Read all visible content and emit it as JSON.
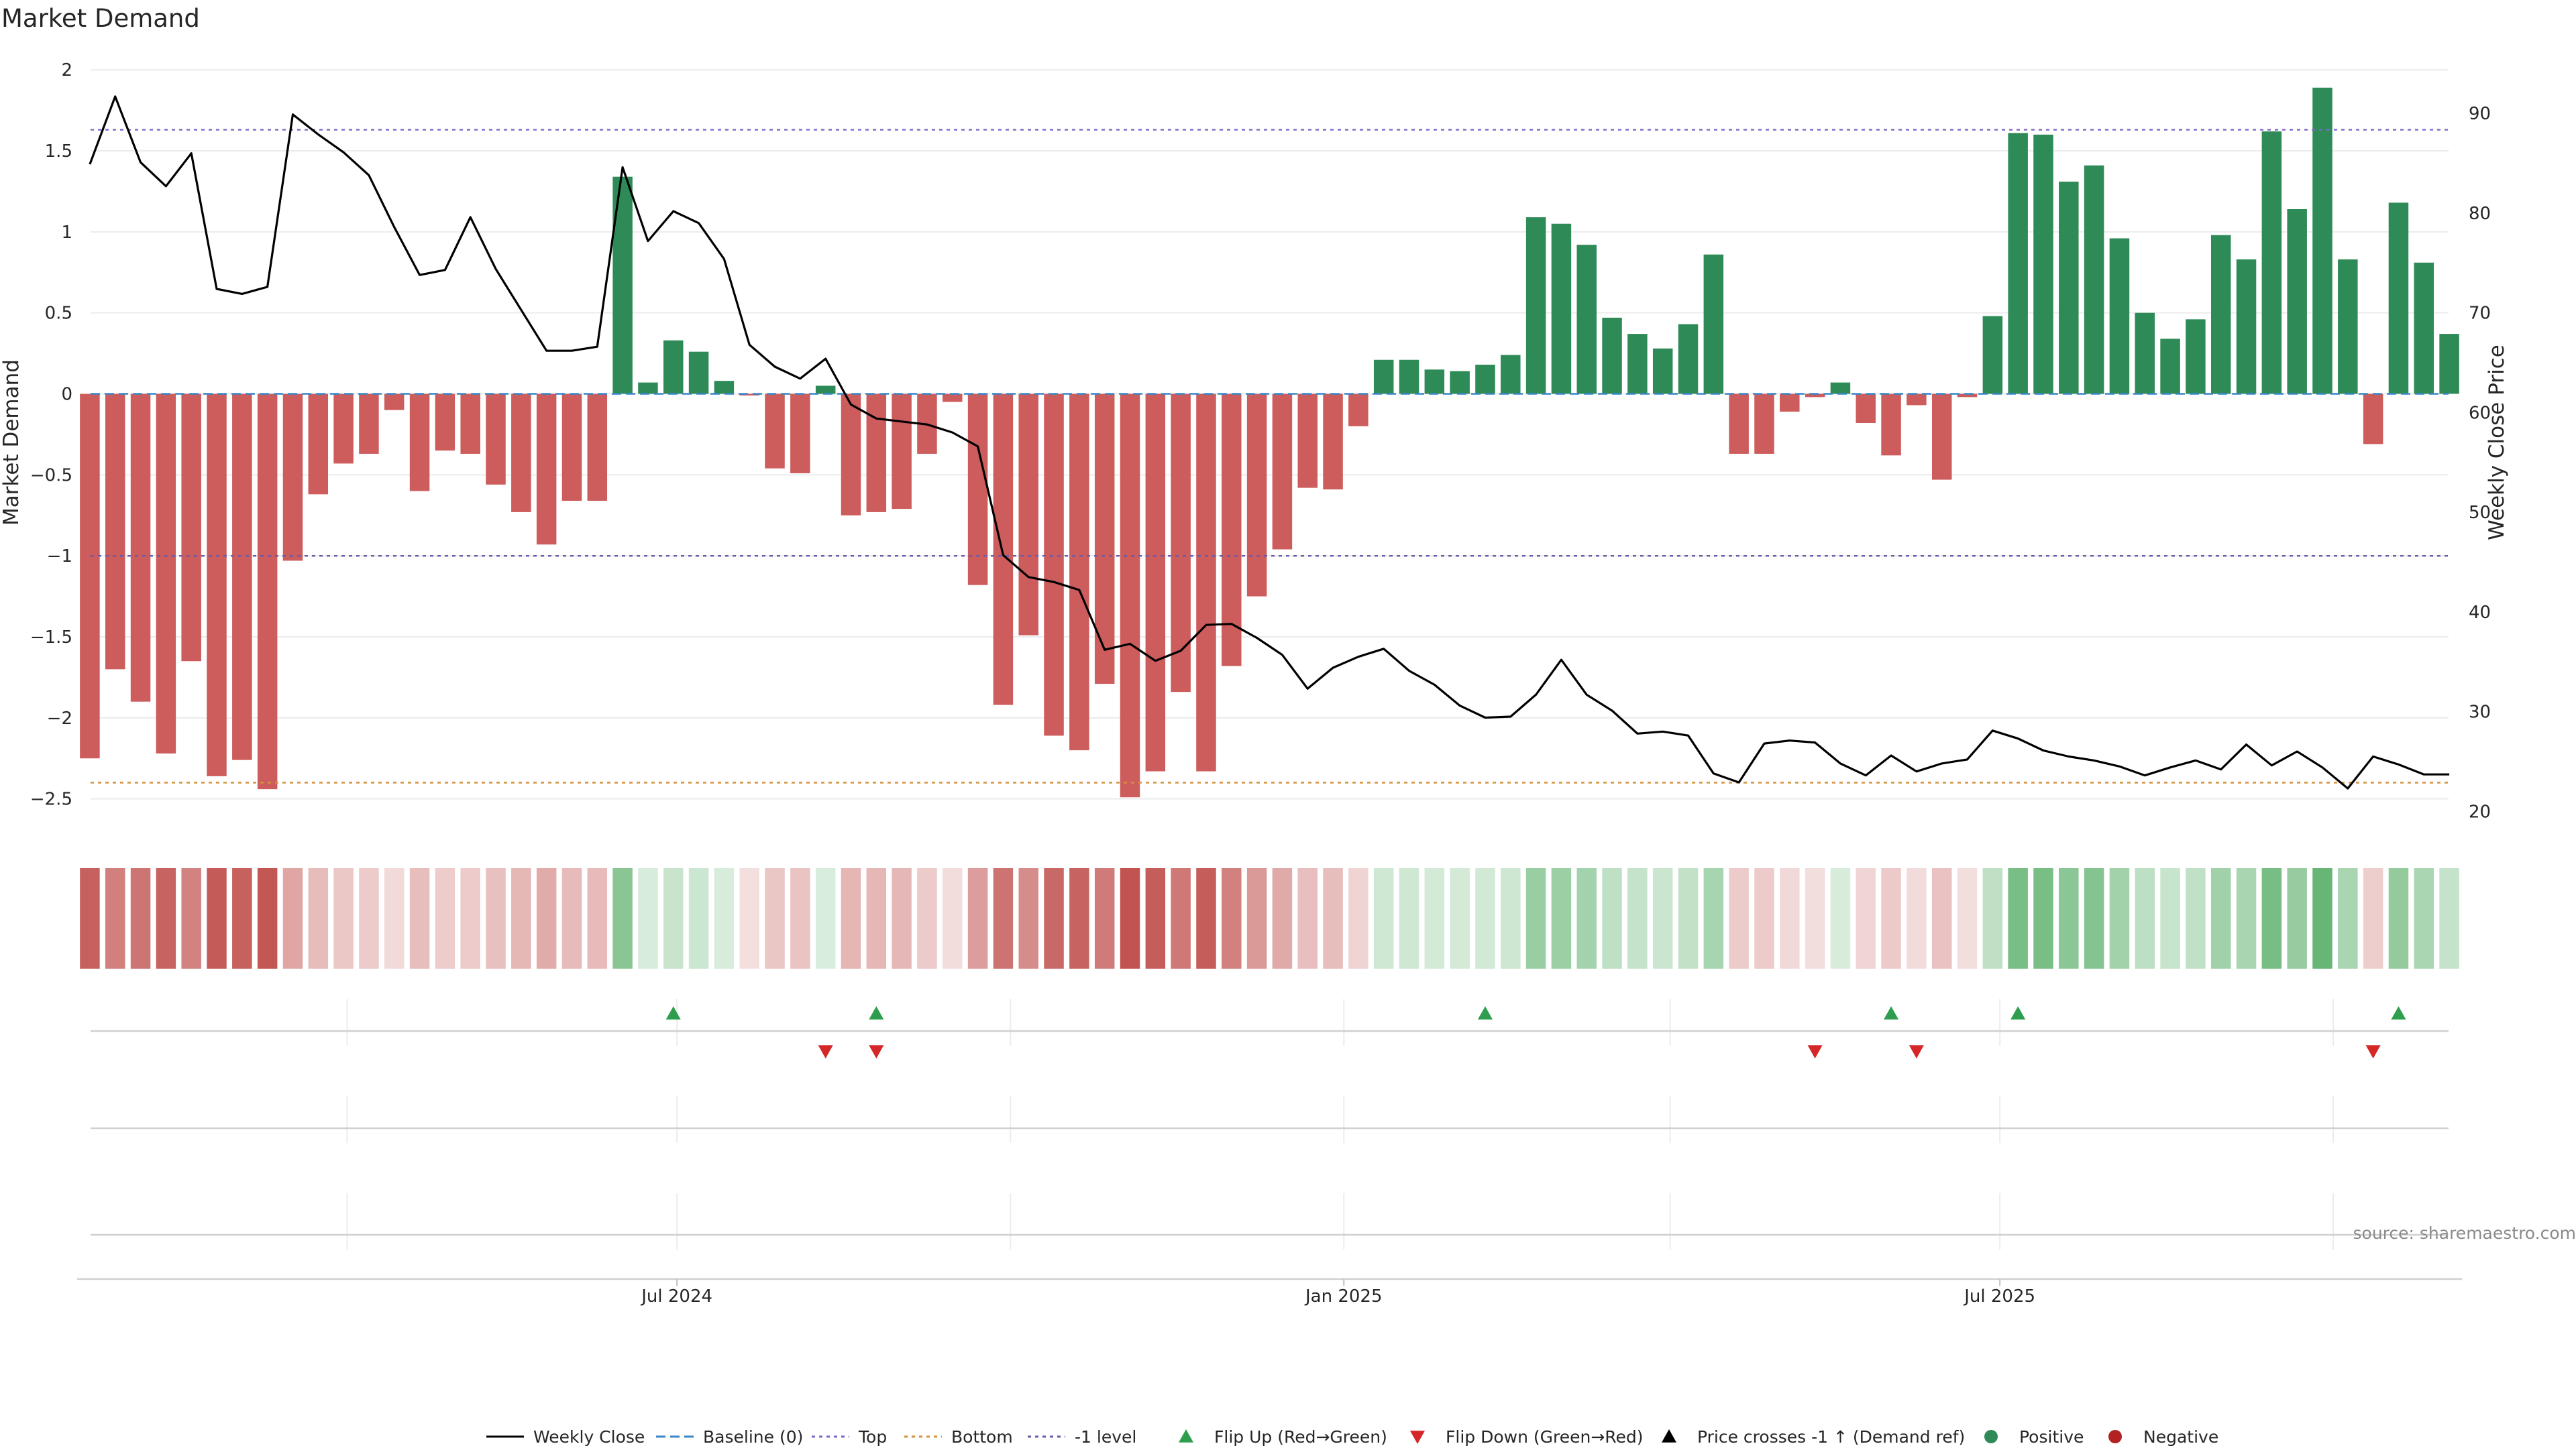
{
  "title": "Market Demand",
  "source": "source: sharemaestro.com",
  "chart_data": {
    "type": "bar",
    "title": "Market Demand",
    "ylabel_left": "Market Demand",
    "ylabel_right": "Weekly Close Price",
    "ylim_left": [
      -2.7,
      2.1
    ],
    "ylim_right": [
      18,
      96
    ],
    "yticks_left": [
      2,
      1.5,
      1,
      0.5,
      0,
      -0.5,
      -1,
      -1.5,
      -2,
      -2.5
    ],
    "ytick_labels_left": [
      "2",
      "1.5",
      "1",
      "0.5",
      "0",
      "−0.5",
      "−1",
      "−1.5",
      "−2",
      "−2.5"
    ],
    "yticks_right": [
      90,
      80,
      70,
      60,
      50,
      40,
      30,
      20
    ],
    "x_dates": [
      "2024-01-21",
      "2024-01-28",
      "2024-02-04",
      "2024-02-11",
      "2024-02-18",
      "2024-02-25",
      "2024-03-03",
      "2024-03-10",
      "2024-03-17",
      "2024-03-24",
      "2024-03-31",
      "2024-04-07",
      "2024-04-14",
      "2024-04-21",
      "2024-04-28",
      "2024-05-05",
      "2024-05-12",
      "2024-05-19",
      "2024-05-26",
      "2024-06-02",
      "2024-06-09",
      "2024-06-16",
      "2024-06-23",
      "2024-06-30",
      "2024-07-07",
      "2024-07-14",
      "2024-07-21",
      "2024-07-28",
      "2024-08-04",
      "2024-08-11",
      "2024-08-18",
      "2024-08-25",
      "2024-09-01",
      "2024-09-08",
      "2024-09-15",
      "2024-09-22",
      "2024-09-29",
      "2024-10-06",
      "2024-10-13",
      "2024-10-20",
      "2024-10-27",
      "2024-11-03",
      "2024-11-10",
      "2024-11-17",
      "2024-11-24",
      "2024-12-01",
      "2024-12-08",
      "2024-12-15",
      "2024-12-22",
      "2024-12-29",
      "2025-01-05",
      "2025-01-12",
      "2025-01-19",
      "2025-01-26",
      "2025-02-02",
      "2025-02-09",
      "2025-02-16",
      "2025-02-23",
      "2025-03-02",
      "2025-03-09",
      "2025-03-16",
      "2025-03-23",
      "2025-03-30",
      "2025-04-06",
      "2025-04-13",
      "2025-04-20",
      "2025-04-27",
      "2025-05-04",
      "2025-05-11",
      "2025-05-18",
      "2025-05-25",
      "2025-06-01",
      "2025-06-08",
      "2025-06-15",
      "2025-06-22",
      "2025-06-29",
      "2025-07-06",
      "2025-07-13",
      "2025-07-20",
      "2025-07-27",
      "2025-08-03",
      "2025-08-10",
      "2025-08-17",
      "2025-08-24",
      "2025-08-31",
      "2025-09-07",
      "2025-09-14",
      "2025-09-21",
      "2025-09-28",
      "2025-10-05",
      "2025-10-12",
      "2025-10-19",
      "2025-10-26",
      "2025-11-02"
    ],
    "x_ticks": [
      {
        "label": "Jul 2024",
        "date": "2024-07-01"
      },
      {
        "label": "Jan 2025",
        "date": "2025-01-01"
      },
      {
        "label": "Jul 2025",
        "date": "2025-07-01"
      }
    ],
    "x_minor_grid": [
      "2024-04-01",
      "2024-10-01",
      "2025-04-01",
      "2025-10-01"
    ],
    "demand": [
      -2.25,
      -1.7,
      -1.9,
      -2.22,
      -1.65,
      -2.36,
      -2.26,
      -2.44,
      -1.03,
      -0.62,
      -0.43,
      -0.37,
      -0.1,
      -0.6,
      -0.35,
      -0.37,
      -0.56,
      -0.73,
      -0.93,
      -0.66,
      -0.66,
      1.34,
      0.07,
      0.33,
      0.26,
      0.08,
      -0.01,
      -0.46,
      -0.49,
      0.05,
      -0.75,
      -0.73,
      -0.71,
      -0.37,
      -0.05,
      -1.18,
      -1.92,
      -1.49,
      -2.11,
      -2.2,
      -1.79,
      -2.49,
      -2.33,
      -1.84,
      -2.33,
      -1.68,
      -1.25,
      -0.96,
      -0.58,
      -0.59,
      -0.2,
      0.21,
      0.21,
      0.15,
      0.14,
      0.18,
      0.24,
      1.09,
      1.05,
      0.92,
      0.47,
      0.37,
      0.28,
      0.43,
      0.86,
      -0.37,
      -0.37,
      -0.11,
      -0.02,
      0.07,
      -0.18,
      -0.38,
      -0.07,
      -0.53,
      -0.02,
      0.48,
      1.61,
      1.6,
      1.31,
      1.41,
      0.96,
      0.5,
      0.34,
      0.46,
      0.98,
      0.83,
      1.62,
      1.14,
      1.89,
      0.83,
      -0.31,
      1.18,
      0.81,
      0.37
    ],
    "close": [
      84.9,
      91.7,
      85.1,
      82.7,
      86.0,
      72.4,
      71.9,
      72.6,
      89.9,
      87.9,
      86.1,
      83.8,
      78.6,
      73.8,
      74.3,
      79.6,
      74.4,
      70.3,
      66.2,
      66.2,
      66.6,
      84.6,
      77.2,
      80.2,
      79.0,
      75.4,
      66.8,
      64.6,
      63.4,
      65.4,
      60.8,
      59.4,
      59.1,
      58.8,
      58.0,
      56.6,
      45.7,
      43.5,
      43.0,
      42.2,
      36.2,
      36.8,
      35.1,
      36.1,
      38.7,
      38.8,
      37.4,
      35.7,
      32.3,
      34.4,
      35.5,
      36.3,
      34.1,
      32.7,
      30.6,
      29.4,
      29.5,
      31.7,
      35.2,
      31.7,
      30.1,
      27.8,
      28.0,
      27.6,
      23.8,
      22.9,
      26.8,
      27.1,
      26.9,
      24.8,
      23.6,
      25.6,
      24.0,
      24.8,
      25.2,
      28.1,
      27.3,
      26.1,
      25.5,
      25.1,
      24.5,
      23.6,
      24.4,
      25.1,
      24.2,
      26.7,
      24.6,
      26.0,
      24.4,
      22.3,
      25.5,
      24.7,
      23.7,
      23.7
    ],
    "reference_lines": [
      {
        "name": "Baseline (0)",
        "value": 0,
        "color": "#3a86c8",
        "style": "dashed"
      },
      {
        "name": "Top",
        "value": 1.63,
        "color": "#7b68c9",
        "style": "dotted"
      },
      {
        "name": "Bottom",
        "value": -2.4,
        "color": "#d4913a",
        "style": "dotted"
      },
      {
        "name": "-1 level",
        "value": -1.0,
        "color": "#6a5aa8",
        "style": "dotted"
      }
    ],
    "flip_up_dates": [
      "2024-06-30",
      "2024-08-25",
      "2025-02-09",
      "2025-06-01",
      "2025-07-06",
      "2025-10-19"
    ],
    "flip_down_dates": [
      "2024-08-11",
      "2024-08-25",
      "2025-05-11",
      "2025-06-08",
      "2025-10-12"
    ],
    "legend": [
      "Weekly Close",
      "Baseline (0)",
      "Top",
      "Bottom",
      "-1 level",
      "Flip Up (Red→Green)",
      "Flip Down (Green→Red)",
      "Price crosses -1 ↑ (Demand ref)",
      "Positive",
      "Negative"
    ],
    "legend_position": "bottom-center",
    "colors": {
      "positive": "#2e8b57",
      "negative": "#cd5c5c",
      "close": "#000000",
      "flip_up": "#2e9e4e",
      "flip_down": "#d62728"
    }
  }
}
